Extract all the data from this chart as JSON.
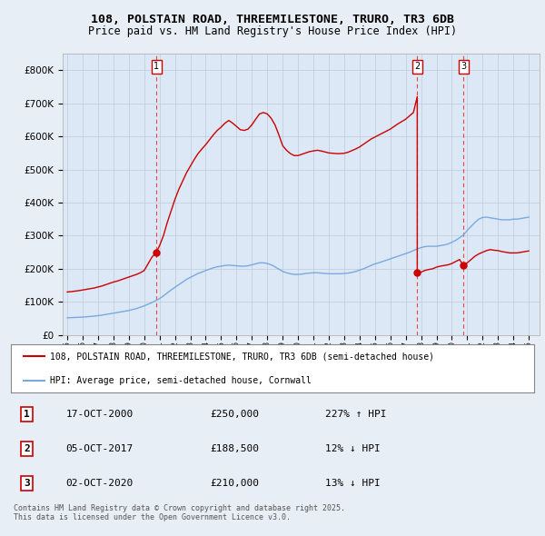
{
  "title": "108, POLSTAIN ROAD, THREEMILESTONE, TRURO, TR3 6DB",
  "subtitle": "Price paid vs. HM Land Registry's House Price Index (HPI)",
  "background_color": "#e8eef5",
  "plot_bg_color": "#dce8f5",
  "ylim": [
    0,
    850000
  ],
  "yticks": [
    0,
    100000,
    200000,
    300000,
    400000,
    500000,
    600000,
    700000,
    800000
  ],
  "ytick_labels": [
    "£0",
    "£100K",
    "£200K",
    "£300K",
    "£400K",
    "£500K",
    "£600K",
    "£700K",
    "£800K"
  ],
  "sale1_date": 2000.79,
  "sale1_price": 250000,
  "sale1_label": "1",
  "sale2_date": 2017.75,
  "sale2_price": 188500,
  "sale2_label": "2",
  "sale3_date": 2020.75,
  "sale3_price": 210000,
  "sale3_label": "3",
  "legend_line1": "108, POLSTAIN ROAD, THREEMILESTONE, TRURO, TR3 6DB (semi-detached house)",
  "legend_line2": "HPI: Average price, semi-detached house, Cornwall",
  "table_rows": [
    [
      "1",
      "17-OCT-2000",
      "£250,000",
      "227% ↑ HPI"
    ],
    [
      "2",
      "05-OCT-2017",
      "£188,500",
      "12% ↓ HPI"
    ],
    [
      "3",
      "02-OCT-2020",
      "£210,000",
      "13% ↓ HPI"
    ]
  ],
  "footer": "Contains HM Land Registry data © Crown copyright and database right 2025.\nThis data is licensed under the Open Government Licence v3.0.",
  "red_color": "#cc0000",
  "blue_color": "#7aaadd",
  "marker_color": "#cc0000",
  "vline_color": "#ee4444",
  "grid_color": "#bbccdd",
  "red_line_data": {
    "years": [
      1995.0,
      1995.25,
      1995.5,
      1995.75,
      1996.0,
      1996.25,
      1996.5,
      1996.75,
      1997.0,
      1997.25,
      1997.5,
      1997.75,
      1998.0,
      1998.25,
      1998.5,
      1998.75,
      1999.0,
      1999.25,
      1999.5,
      1999.75,
      2000.0,
      2000.25,
      2000.5,
      2000.79,
      2001.0,
      2001.25,
      2001.5,
      2001.75,
      2002.0,
      2002.25,
      2002.5,
      2002.75,
      2003.0,
      2003.25,
      2003.5,
      2003.75,
      2004.0,
      2004.25,
      2004.5,
      2004.75,
      2005.0,
      2005.25,
      2005.5,
      2005.75,
      2006.0,
      2006.25,
      2006.5,
      2006.75,
      2007.0,
      2007.25,
      2007.5,
      2007.75,
      2008.0,
      2008.25,
      2008.5,
      2008.75,
      2009.0,
      2009.25,
      2009.5,
      2009.75,
      2010.0,
      2010.25,
      2010.5,
      2010.75,
      2011.0,
      2011.25,
      2011.5,
      2011.75,
      2012.0,
      2012.25,
      2012.5,
      2012.75,
      2013.0,
      2013.25,
      2013.5,
      2013.75,
      2014.0,
      2014.25,
      2014.5,
      2014.75,
      2015.0,
      2015.25,
      2015.5,
      2015.75,
      2016.0,
      2016.25,
      2016.5,
      2016.75,
      2017.0,
      2017.25,
      2017.5,
      2017.75,
      2017.75,
      2018.0,
      2018.25,
      2018.5,
      2018.75,
      2019.0,
      2019.25,
      2019.5,
      2019.75,
      2020.0,
      2020.25,
      2020.5,
      2020.75,
      2020.75,
      2021.0,
      2021.25,
      2021.5,
      2021.75,
      2022.0,
      2022.25,
      2022.5,
      2022.75,
      2023.0,
      2023.25,
      2023.5,
      2023.75,
      2024.0,
      2024.25,
      2024.5,
      2024.75,
      2025.0
    ],
    "values": [
      130000,
      131000,
      132500,
      134000,
      136000,
      138000,
      140000,
      142000,
      145000,
      148000,
      152000,
      156000,
      160000,
      163000,
      167000,
      171000,
      175000,
      179000,
      183000,
      188000,
      195000,
      215000,
      235000,
      250000,
      270000,
      300000,
      340000,
      375000,
      410000,
      440000,
      465000,
      490000,
      510000,
      530000,
      548000,
      562000,
      575000,
      590000,
      605000,
      618000,
      628000,
      640000,
      648000,
      640000,
      630000,
      620000,
      618000,
      622000,
      635000,
      652000,
      668000,
      672000,
      668000,
      655000,
      635000,
      605000,
      572000,
      558000,
      548000,
      542000,
      542000,
      546000,
      550000,
      554000,
      556000,
      558000,
      556000,
      553000,
      550000,
      549000,
      548000,
      548000,
      549000,
      552000,
      557000,
      562000,
      568000,
      576000,
      584000,
      592000,
      598000,
      604000,
      610000,
      616000,
      622000,
      630000,
      638000,
      645000,
      652000,
      662000,
      672000,
      720000,
      188500,
      190000,
      195000,
      198000,
      200000,
      205000,
      208000,
      210000,
      212000,
      216000,
      222000,
      228000,
      210000,
      210000,
      218000,
      228000,
      238000,
      245000,
      250000,
      255000,
      258000,
      256000,
      255000,
      252000,
      250000,
      248000,
      248000,
      248000,
      250000,
      252000,
      254000
    ]
  },
  "blue_line_data": {
    "years": [
      1995.0,
      1995.25,
      1995.5,
      1995.75,
      1996.0,
      1996.25,
      1996.5,
      1996.75,
      1997.0,
      1997.25,
      1997.5,
      1997.75,
      1998.0,
      1998.25,
      1998.5,
      1998.75,
      1999.0,
      1999.25,
      1999.5,
      1999.75,
      2000.0,
      2000.25,
      2000.5,
      2000.75,
      2001.0,
      2001.25,
      2001.5,
      2001.75,
      2002.0,
      2002.25,
      2002.5,
      2002.75,
      2003.0,
      2003.25,
      2003.5,
      2003.75,
      2004.0,
      2004.25,
      2004.5,
      2004.75,
      2005.0,
      2005.25,
      2005.5,
      2005.75,
      2006.0,
      2006.25,
      2006.5,
      2006.75,
      2007.0,
      2007.25,
      2007.5,
      2007.75,
      2008.0,
      2008.25,
      2008.5,
      2008.75,
      2009.0,
      2009.25,
      2009.5,
      2009.75,
      2010.0,
      2010.25,
      2010.5,
      2010.75,
      2011.0,
      2011.25,
      2011.5,
      2011.75,
      2012.0,
      2012.25,
      2012.5,
      2012.75,
      2013.0,
      2013.25,
      2013.5,
      2013.75,
      2014.0,
      2014.25,
      2014.5,
      2014.75,
      2015.0,
      2015.25,
      2015.5,
      2015.75,
      2016.0,
      2016.25,
      2016.5,
      2016.75,
      2017.0,
      2017.25,
      2017.5,
      2017.75,
      2018.0,
      2018.25,
      2018.5,
      2018.75,
      2019.0,
      2019.25,
      2019.5,
      2019.75,
      2020.0,
      2020.25,
      2020.5,
      2020.75,
      2021.0,
      2021.25,
      2021.5,
      2021.75,
      2022.0,
      2022.25,
      2022.5,
      2022.75,
      2023.0,
      2023.25,
      2023.5,
      2023.75,
      2024.0,
      2024.25,
      2024.5,
      2024.75,
      2025.0
    ],
    "values": [
      52000,
      52500,
      53000,
      53500,
      54000,
      55000,
      56000,
      57000,
      58500,
      60000,
      62000,
      64000,
      66000,
      68000,
      70000,
      72000,
      74000,
      77000,
      80000,
      84000,
      88000,
      93000,
      98000,
      104000,
      110000,
      118000,
      127000,
      136000,
      144000,
      152000,
      160000,
      168000,
      174000,
      180000,
      186000,
      190000,
      195000,
      199000,
      203000,
      206000,
      208000,
      210000,
      211000,
      210000,
      209000,
      208000,
      208000,
      209000,
      212000,
      215000,
      218000,
      218000,
      216000,
      212000,
      206000,
      199000,
      192000,
      188000,
      185000,
      183000,
      183000,
      184000,
      186000,
      187000,
      188000,
      188000,
      187000,
      186000,
      185000,
      185000,
      185000,
      185000,
      186000,
      187000,
      189000,
      192000,
      196000,
      200000,
      205000,
      210000,
      215000,
      218000,
      222000,
      226000,
      230000,
      234000,
      238000,
      242000,
      246000,
      250000,
      255000,
      260000,
      264000,
      267000,
      268000,
      268000,
      268000,
      270000,
      272000,
      275000,
      280000,
      286000,
      294000,
      302000,
      316000,
      328000,
      340000,
      350000,
      355000,
      356000,
      354000,
      352000,
      350000,
      348000,
      348000,
      348000,
      350000,
      350000,
      352000,
      354000,
      356000
    ]
  }
}
